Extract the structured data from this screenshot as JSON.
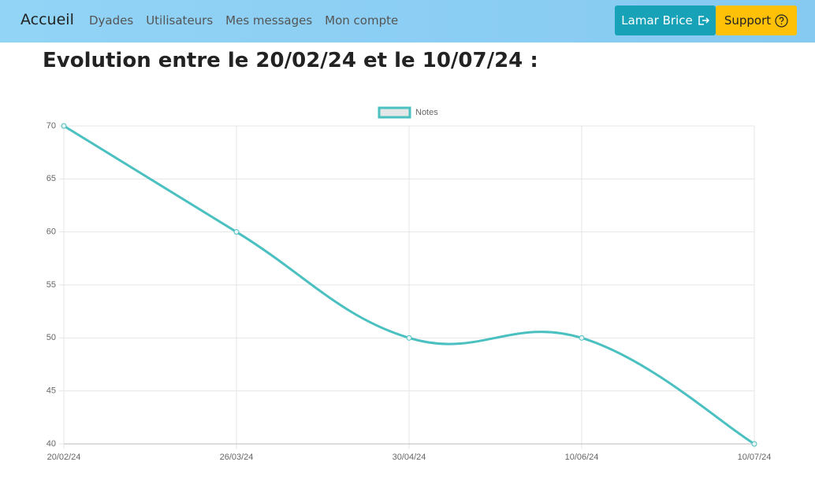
{
  "navbar": {
    "brand": "Accueil",
    "links": [
      "Dyades",
      "Utilisateurs",
      "Mes messages",
      "Mon compte"
    ],
    "user_button": "Lamar Brice",
    "support_button": "Support"
  },
  "heading": "Evolution entre le 20/02/24 et le 10/07/24 :",
  "chart_data": {
    "type": "line",
    "categories": [
      "20/02/24",
      "26/03/24",
      "30/04/24",
      "10/06/24",
      "10/07/24"
    ],
    "series": [
      {
        "name": "Notes",
        "color": "#4bc0c0",
        "values": [
          70,
          60,
          50,
          50,
          40
        ]
      }
    ],
    "ylim": [
      40,
      70
    ],
    "yticks": [
      40,
      45,
      50,
      55,
      60,
      65,
      70
    ],
    "grid": true,
    "legend": "top"
  }
}
